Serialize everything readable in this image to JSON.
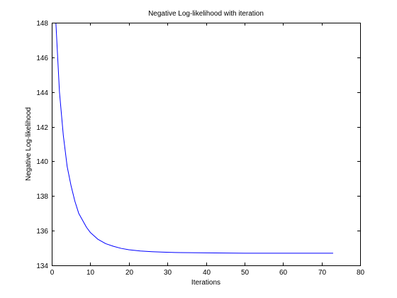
{
  "chart_data": {
    "type": "line",
    "title": "Negative Log-likelihood with iteration",
    "xlabel": "Iterations",
    "ylabel": "Negative Log-likelihood",
    "xlim": [
      0,
      80
    ],
    "ylim": [
      134,
      148
    ],
    "xticks": [
      0,
      10,
      20,
      30,
      40,
      50,
      60,
      70,
      80
    ],
    "yticks": [
      134,
      136,
      138,
      140,
      142,
      144,
      146,
      148
    ],
    "grid": false,
    "colors": {
      "line": "#0000ff",
      "axes": "#000000",
      "background": "#ffffff"
    },
    "series": [
      {
        "x": [
          1,
          2,
          3,
          4,
          5,
          6,
          7,
          8,
          9,
          10,
          12,
          14,
          16,
          18,
          20,
          23,
          26,
          29,
          32,
          36,
          40,
          45,
          50,
          55,
          60,
          65,
          70,
          73
        ],
        "y": [
          148.3,
          144.0,
          141.5,
          139.7,
          138.6,
          137.7,
          137.0,
          136.6,
          136.2,
          135.9,
          135.5,
          135.25,
          135.1,
          134.98,
          134.9,
          134.83,
          134.79,
          134.76,
          134.74,
          134.73,
          134.72,
          134.71,
          134.7,
          134.7,
          134.7,
          134.7,
          134.7,
          134.7
        ]
      }
    ]
  }
}
